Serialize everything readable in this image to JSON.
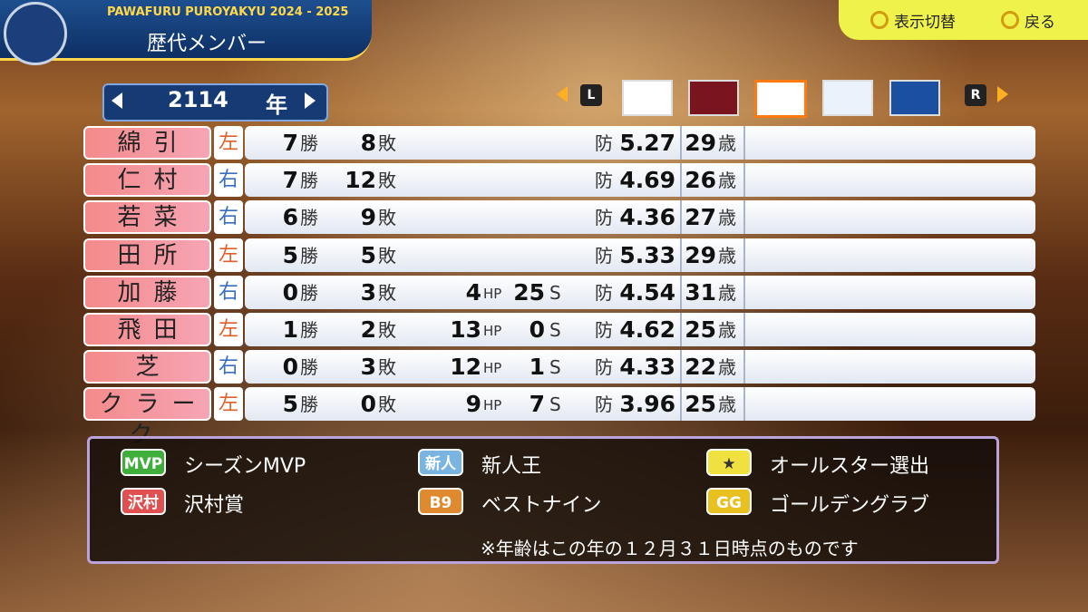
{
  "header": {
    "game_title": "PAWAFURU PUROYAKYU 2024 - 2025",
    "screen_title": "歴代メンバー"
  },
  "controls": [
    {
      "label": "表示切替"
    },
    {
      "label": "戻る"
    }
  ],
  "year_selector": {
    "year": 2114,
    "unit": "年"
  },
  "team_tabs": {
    "left_button": "L",
    "right_button": "R"
  },
  "table": {
    "units": {
      "win": "勝",
      "loss": "敗",
      "hold": "HP",
      "save": "S",
      "era": "防",
      "age": "歳"
    },
    "rows": [
      {
        "name": "綿引",
        "hand": "左",
        "wins": 7,
        "losses": 8,
        "era": 5.27,
        "age": 29
      },
      {
        "name": "仁村",
        "hand": "右",
        "wins": 7,
        "losses": 12,
        "era": 4.69,
        "age": 26
      },
      {
        "name": "若菜",
        "hand": "右",
        "wins": 6,
        "losses": 9,
        "era": 4.36,
        "age": 27
      },
      {
        "name": "田所",
        "hand": "左",
        "wins": 5,
        "losses": 5,
        "era": 5.33,
        "age": 29
      },
      {
        "name": "加藤",
        "hand": "右",
        "wins": 0,
        "losses": 3,
        "holds": 4,
        "saves": 25,
        "era": 4.54,
        "age": 31
      },
      {
        "name": "飛田",
        "hand": "左",
        "wins": 1,
        "losses": 2,
        "holds": 13,
        "saves": 0,
        "era": 4.62,
        "age": 25
      },
      {
        "name": "芝",
        "hand": "右",
        "wins": 0,
        "losses": 3,
        "holds": 12,
        "saves": 1,
        "era": 4.33,
        "age": 22
      },
      {
        "name": "クラーク",
        "hand": "左",
        "wins": 5,
        "losses": 0,
        "holds": 9,
        "saves": 7,
        "era": 3.96,
        "age": 25
      }
    ]
  },
  "legend": {
    "items": [
      {
        "badge": "MVP",
        "label": "シーズンMVP"
      },
      {
        "badge": "新人",
        "label": "新人王"
      },
      {
        "badge": "★",
        "label": "オールスター選出"
      },
      {
        "badge": "沢村",
        "label": "沢村賞"
      },
      {
        "badge": "B9",
        "label": "ベストナイン"
      },
      {
        "badge": "GG",
        "label": "ゴールデングラブ"
      }
    ],
    "note": "※年齢はこの年の１２月３１日時点のものです"
  }
}
